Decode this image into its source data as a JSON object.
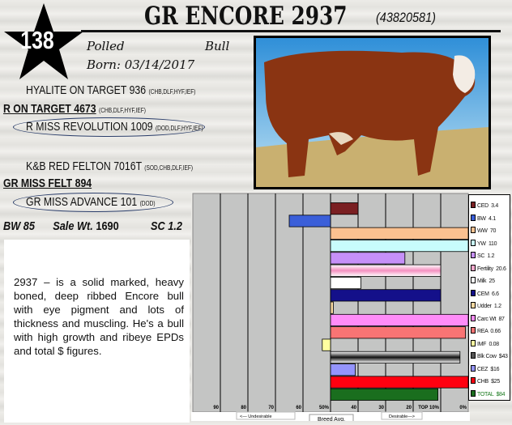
{
  "lot_number": "138",
  "animal": {
    "name": "GR ENCORE 2937",
    "registration": "(43820581)",
    "horn_status": "Polled",
    "sex": "Bull",
    "born": "Born: 03/14/2017"
  },
  "pedigree": {
    "sire_sire": {
      "name": "HYALITE ON TARGET 936",
      "tags": "(CHB,DLF,HYF,IEF)"
    },
    "sire": {
      "name": "R ON TARGET 4673",
      "tags": "(CHB,DLF,HYF,IEF)"
    },
    "sire_dam": {
      "name": "R MISS REVOLUTION 1009",
      "tags": "(DOD,DLF,HYF,IEF)"
    },
    "dam_sire": {
      "name": "K&B RED FELTON 7016T",
      "tags": "(SOD,CHB,DLF,IEF)"
    },
    "dam": {
      "name": "GR MISS FELT 894",
      "tags": ""
    },
    "dam_dam": {
      "name": "GR MISS ADVANCE 101",
      "tags": "(DOD)"
    }
  },
  "stats": {
    "bw": "BW 85",
    "sale_wt_label": "Sale Wt.",
    "sale_wt": "1690",
    "sc": "SC 1.2"
  },
  "description": "2937 – is a solid marked, heavy boned, deep ribbed Encore bull with eye pigment and lots of thickness and muscling.  He's a bull with high growth and ribeye EPDs and total $ figures.",
  "photo": {
    "subject": "hereford-bull-photo"
  },
  "chart_data": {
    "type": "bar",
    "orientation": "horizontal",
    "baseline": 50,
    "xlim": [
      100,
      0
    ],
    "x_tick_labels": [
      "90",
      "80",
      "70",
      "60",
      "50%",
      "40",
      "30",
      "20",
      "TOP 10%",
      "0%"
    ],
    "x_ticks": [
      90,
      80,
      70,
      60,
      50,
      40,
      30,
      20,
      10,
      0
    ],
    "grid": true,
    "legend_position": "right",
    "bottom_labels": {
      "left": "<— Undesirable",
      "center": "Breed Avg.",
      "right": "Desirable—>"
    },
    "series": [
      {
        "name": "CED",
        "epd": "3.4",
        "percentile": 40,
        "color": "#7a1f22"
      },
      {
        "name": "BW",
        "epd": "4.1",
        "percentile": 65,
        "color": "#3a5fd9"
      },
      {
        "name": "WW",
        "epd": "70",
        "percentile": 0,
        "color": "#fbc190"
      },
      {
        "name": "YW",
        "epd": "110",
        "percentile": 0,
        "color": "#c8fcfc"
      },
      {
        "name": "SC",
        "epd": "1.2",
        "percentile": 23,
        "color": "#c690f8"
      },
      {
        "name": "Fertility",
        "epd": "20.6",
        "percentile": 10,
        "color": "#f7a8cc"
      },
      {
        "name": "Milk",
        "epd": "25",
        "percentile": 39,
        "color": "#ffffff"
      },
      {
        "name": "CEM",
        "epd": "6.6",
        "percentile": 10,
        "color": "#14108a"
      },
      {
        "name": "Udder",
        "epd": "1.2",
        "percentile": 49,
        "color": "#f8d8a0"
      },
      {
        "name": "Carc Wt",
        "epd": "87",
        "percentile": 0,
        "color": "#ff8cf8"
      },
      {
        "name": "REA",
        "epd": "0.66",
        "percentile": 1,
        "color": "#f87474"
      },
      {
        "name": "IMF",
        "epd": "0.08",
        "percentile": 53,
        "color": "#ffffa0"
      },
      {
        "name": "Blk Cow",
        "epd": "$43",
        "percentile": 3,
        "color": "#555555"
      },
      {
        "name": "CEZ",
        "epd": "$16",
        "percentile": 41,
        "color": "#9494fc"
      },
      {
        "name": "CHB",
        "epd": "$25",
        "percentile": 0,
        "color": "#ff0010"
      },
      {
        "name": "TOTAL",
        "epd": "$84",
        "percentile": 11,
        "color": "#1a6e1e"
      }
    ]
  }
}
